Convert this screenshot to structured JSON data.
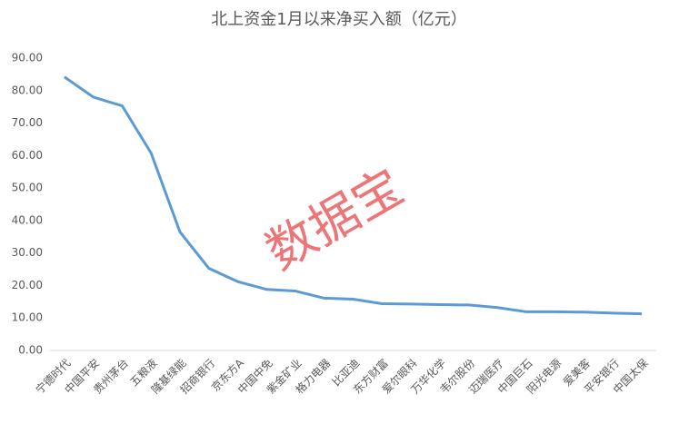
{
  "chart_data": {
    "type": "line",
    "title": "北上资金1月以来净买入额（亿元）",
    "watermark": "数据宝",
    "categories": [
      "宁德时代",
      "中国平安",
      "贵州茅台",
      "五粮液",
      "隆基绿能",
      "招商银行",
      "京东方A",
      "中国中免",
      "紫金矿业",
      "格力电器",
      "比亚迪",
      "东方财富",
      "爱尔眼科",
      "万华化学",
      "韦尔股份",
      "迈瑞医疗",
      "中国巨石",
      "阳光电源",
      "爱美客",
      "平安银行",
      "中国太保"
    ],
    "values": [
      84.2,
      78.0,
      75.3,
      60.8,
      36.5,
      25.3,
      21.2,
      18.8,
      18.3,
      16.1,
      15.8,
      14.4,
      14.3,
      14.1,
      14.0,
      13.2,
      11.9,
      11.9,
      11.8,
      11.5,
      11.3
    ],
    "color": "#5b9bd5",
    "ylim": [
      0,
      90
    ],
    "yticks": [
      {
        "value": 0,
        "label": "0.00"
      },
      {
        "value": 10,
        "label": "10.00"
      },
      {
        "value": 20,
        "label": "20.00"
      },
      {
        "value": 30,
        "label": "30.00"
      },
      {
        "value": 40,
        "label": "40.00"
      },
      {
        "value": 50,
        "label": "50.00"
      },
      {
        "value": 60,
        "label": "60.00"
      },
      {
        "value": 70,
        "label": "70.00"
      },
      {
        "value": 80,
        "label": "80.00"
      },
      {
        "value": 90,
        "label": "90.00"
      }
    ]
  }
}
